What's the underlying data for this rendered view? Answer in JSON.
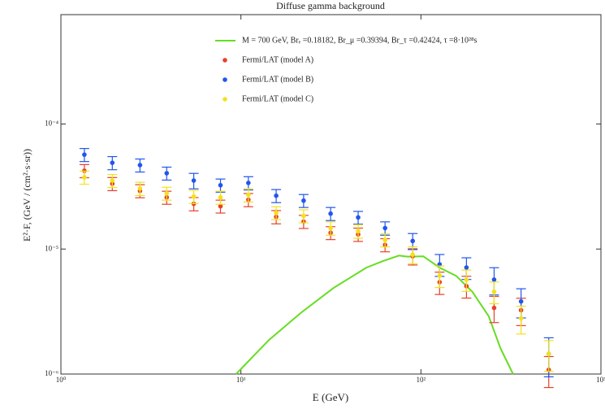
{
  "chart_data": {
    "type": "scatter",
    "title": "Diffuse gamma background",
    "x_label": "E (GeV)",
    "y_label": "E²·F, (GeV / (cm²·s·sr))",
    "log_x": true,
    "log_y": true,
    "xlim": [
      1,
      1000
    ],
    "ylim": [
      1e-06,
      0.00075
    ],
    "xticks": [
      {
        "value": 1,
        "label": "10⁰"
      },
      {
        "value": 10,
        "label": "10¹"
      },
      {
        "value": 100,
        "label": "10²"
      },
      {
        "value": 1000,
        "label": "10³"
      }
    ],
    "yticks": [
      {
        "value": 1e-06,
        "label": "10⁻⁶"
      },
      {
        "value": 1e-05,
        "label": "10⁻⁵"
      },
      {
        "value": 0.0001,
        "label": "10⁻⁴"
      }
    ],
    "legend": "upper right",
    "series": [
      {
        "name": "M = 700 GeV, Brₑ =0.18182, Br_μ =0.39394, Br_τ =0.42424, τ =8·10²⁸s",
        "mode": "line",
        "color": "#66dd22",
        "x": [
          9.4,
          14.3,
          21.6,
          32.8,
          49.8,
          61.3,
          75.5,
          83.8,
          103,
          127,
          157,
          193,
          238,
          277,
          325
        ],
        "values": [
          1e-06,
          1.87e-06,
          3.1e-06,
          4.9e-06,
          7.1e-06,
          8e-06,
          8.87e-06,
          8.7e-06,
          8.75e-06,
          7.1e-06,
          6.1e-06,
          4.55e-06,
          2.9e-06,
          1.6e-06,
          1e-06
        ]
      },
      {
        "name": "Fermi/LAT (model A)",
        "mode": "markers",
        "color": "#e8402a",
        "x": [
          1.35,
          1.93,
          2.75,
          3.87,
          5.47,
          7.7,
          11,
          15.7,
          22.3,
          31.5,
          44.8,
          63.2,
          90,
          127,
          179,
          255,
          360,
          513
        ],
        "values": [
          4.23e-05,
          3.33e-05,
          2.92e-05,
          2.59e-05,
          2.3e-05,
          2.2e-05,
          2.48e-05,
          1.81e-05,
          1.66e-05,
          1.35e-05,
          1.31e-05,
          1.08e-05,
          8.75e-06,
          5.43e-06,
          5.05e-06,
          3.38e-06,
          3.24e-06,
          1.08e-06
        ],
        "errors": [
          5.1e-06,
          4e-06,
          3.5e-06,
          3.1e-06,
          2.8e-06,
          2.6e-06,
          3e-06,
          2.2e-06,
          2e-06,
          1.6e-06,
          1.6e-06,
          1.3e-06,
          1.3e-06,
          1.1e-06,
          1e-06,
          8e-07,
          8e-07,
          3e-07
        ]
      },
      {
        "name": "Fermi/LAT (model B)",
        "mode": "markers",
        "color": "#2255ee",
        "x": [
          1.35,
          1.93,
          2.75,
          3.87,
          5.47,
          7.7,
          11,
          15.7,
          22.3,
          31.5,
          44.8,
          63.2,
          90,
          127,
          179,
          255,
          360,
          513
        ],
        "values": [
          5.69e-05,
          4.9e-05,
          4.69e-05,
          4.04e-05,
          3.53e-05,
          3.24e-05,
          3.38e-05,
          2.67e-05,
          2.44e-05,
          1.92e-05,
          1.79e-05,
          1.47e-05,
          1.16e-05,
          7.54e-06,
          7.11e-06,
          5.69e-06,
          3.81e-06,
          1.45e-06
        ],
        "errors": [
          6.8e-06,
          5.9e-06,
          5.6e-06,
          4.8e-06,
          5e-06,
          3.9e-06,
          4.1e-06,
          3.2e-06,
          2.9e-06,
          2.3e-06,
          2.1e-06,
          1.8e-06,
          1.7e-06,
          1.5e-06,
          1.4e-06,
          1.4e-06,
          1e-06,
          5e-07
        ]
      },
      {
        "name": "Fermi/LAT (model C)",
        "mode": "markers",
        "color": "#f2e21a",
        "x": [
          1.35,
          1.93,
          2.75,
          3.87,
          5.47,
          7.7,
          11,
          15.7,
          22.3,
          31.5,
          44.8,
          63.2,
          90,
          127,
          179,
          255,
          360,
          513
        ],
        "values": [
          3.75e-05,
          3.53e-05,
          3.05e-05,
          2.79e-05,
          2.63e-05,
          2.59e-05,
          2.71e-05,
          1.95e-05,
          1.84e-05,
          1.47e-05,
          1.39e-05,
          1.18e-05,
          9.02e-06,
          6.12e-06,
          5.69e-06,
          4.55e-06,
          2.79e-06,
          1.45e-06
        ],
        "errors": [
          4.5e-06,
          4.2e-06,
          3.7e-06,
          3.3e-06,
          3.2e-06,
          3.1e-06,
          3.3e-06,
          2.3e-06,
          2.2e-06,
          1.8e-06,
          1.7e-06,
          1.4e-06,
          1.4e-06,
          1.2e-06,
          1.1e-06,
          9e-07,
          7e-07,
          4e-07
        ]
      }
    ]
  }
}
